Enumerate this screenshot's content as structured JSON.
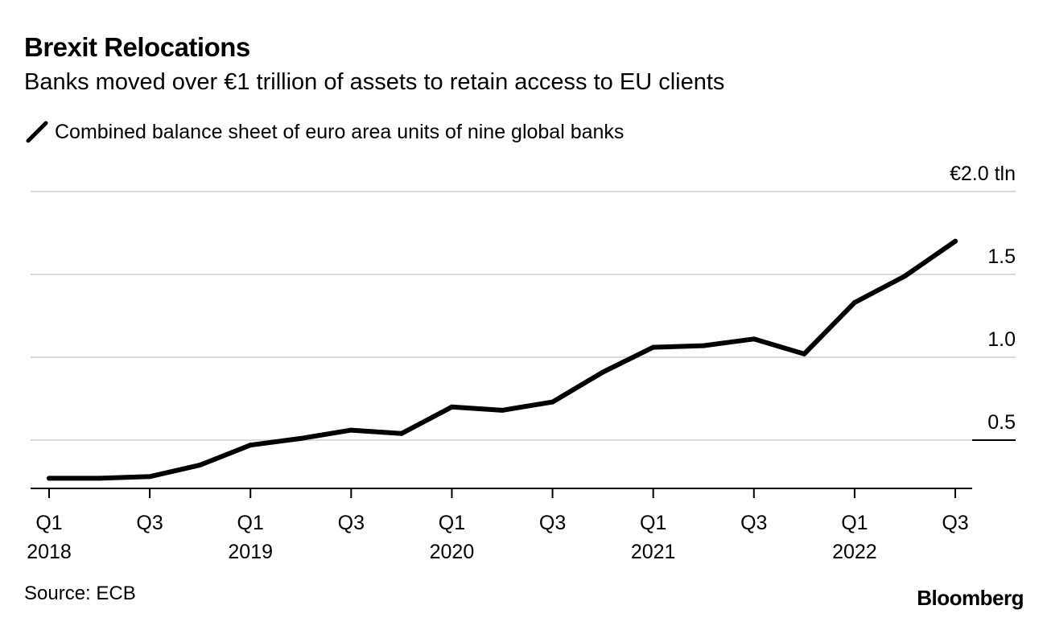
{
  "title": "Brexit Relocations",
  "subtitle": "Banks moved over €1 trillion of assets to retain access to EU clients",
  "source": "Source: ECB",
  "brand": "Bloomberg",
  "colors": {
    "line": "#000000",
    "grid": "#d9d9d9",
    "axis": "#000000"
  },
  "chart_data": {
    "type": "line",
    "title": "Brexit Relocations",
    "subtitle": "Banks moved over €1 trillion of assets to retain access to EU clients",
    "xlabel": "",
    "ylabel": "",
    "ylim": [
      0.2,
      2.0
    ],
    "grid": true,
    "legend": "top-left",
    "y_ticks": [
      {
        "value": 2.0,
        "label": "€2.0 tln"
      },
      {
        "value": 1.5,
        "label": "1.5"
      },
      {
        "value": 1.0,
        "label": "1.0"
      },
      {
        "value": 0.5,
        "label": "0.5"
      }
    ],
    "x_ticks": [
      {
        "q": "Q1",
        "year": "2018",
        "index": 0
      },
      {
        "q": "Q3",
        "year": "",
        "index": 2
      },
      {
        "q": "Q1",
        "year": "2019",
        "index": 4
      },
      {
        "q": "Q3",
        "year": "",
        "index": 6
      },
      {
        "q": "Q1",
        "year": "2020",
        "index": 8
      },
      {
        "q": "Q3",
        "year": "",
        "index": 10
      },
      {
        "q": "Q1",
        "year": "2021",
        "index": 12
      },
      {
        "q": "Q3",
        "year": "",
        "index": 14
      },
      {
        "q": "Q1",
        "year": "2022",
        "index": 16
      },
      {
        "q": "Q3",
        "year": "",
        "index": 18
      }
    ],
    "categories": [
      "2018 Q1",
      "2018 Q2",
      "2018 Q3",
      "2018 Q4",
      "2019 Q1",
      "2019 Q2",
      "2019 Q3",
      "2019 Q4",
      "2020 Q1",
      "2020 Q2",
      "2020 Q3",
      "2020 Q4",
      "2021 Q1",
      "2021 Q2",
      "2021 Q3",
      "2021 Q4",
      "2022 Q1",
      "2022 Q2",
      "2022 Q3"
    ],
    "series": [
      {
        "name": "Combined balance sheet of euro area units of nine global banks",
        "values": [
          0.27,
          0.27,
          0.28,
          0.35,
          0.47,
          0.51,
          0.56,
          0.54,
          0.7,
          0.68,
          0.73,
          0.91,
          1.06,
          1.07,
          1.11,
          1.02,
          1.33,
          1.49,
          1.7
        ]
      }
    ]
  }
}
